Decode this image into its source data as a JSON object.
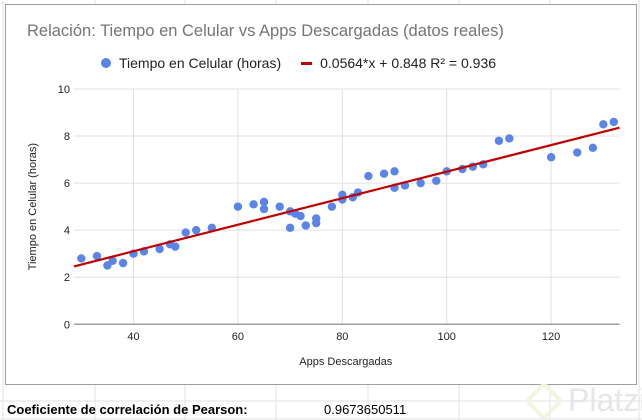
{
  "chart_data": {
    "type": "scatter",
    "title": "Relación: Tiempo en Celular vs Apps Descargadas (datos reales)",
    "xlabel": "Apps Descargadas",
    "ylabel": "Tiempo en Celular (horas)",
    "xlim": [
      28.6,
      133.1
    ],
    "ylim": [
      0,
      10
    ],
    "x_ticks": [
      40,
      60,
      80,
      100,
      120
    ],
    "y_ticks": [
      0,
      2,
      4,
      6,
      8,
      10
    ],
    "grid": true,
    "legend_position": "top",
    "series": [
      {
        "name": "Tiempo en Celular (horas)",
        "color": "#5b84e8",
        "points": [
          [
            30,
            2.8
          ],
          [
            33,
            2.9
          ],
          [
            35,
            2.5
          ],
          [
            36,
            2.7
          ],
          [
            38,
            2.6
          ],
          [
            40,
            3.0
          ],
          [
            42,
            3.1
          ],
          [
            45,
            3.2
          ],
          [
            47,
            3.4
          ],
          [
            48,
            3.3
          ],
          [
            50,
            3.9
          ],
          [
            52,
            4.0
          ],
          [
            55,
            4.1
          ],
          [
            60,
            5.0
          ],
          [
            63,
            5.1
          ],
          [
            65,
            5.2
          ],
          [
            65,
            4.9
          ],
          [
            68,
            5.0
          ],
          [
            70,
            4.8
          ],
          [
            70,
            4.1
          ],
          [
            71,
            4.7
          ],
          [
            72,
            4.6
          ],
          [
            73,
            4.2
          ],
          [
            75,
            4.5
          ],
          [
            75,
            4.3
          ],
          [
            78,
            5.0
          ],
          [
            80,
            5.5
          ],
          [
            80,
            5.3
          ],
          [
            82,
            5.4
          ],
          [
            83,
            5.6
          ],
          [
            85,
            6.3
          ],
          [
            88,
            6.4
          ],
          [
            90,
            6.5
          ],
          [
            90,
            5.8
          ],
          [
            92,
            5.9
          ],
          [
            95,
            6.0
          ],
          [
            98,
            6.1
          ],
          [
            100,
            6.5
          ],
          [
            103,
            6.6
          ],
          [
            105,
            6.7
          ],
          [
            107,
            6.8
          ],
          [
            110,
            7.8
          ],
          [
            112,
            7.9
          ],
          [
            120,
            7.1
          ],
          [
            125,
            7.3
          ],
          [
            128,
            7.5
          ],
          [
            130,
            8.5
          ],
          [
            132,
            8.6
          ]
        ]
      }
    ],
    "trendline": {
      "label": "0.0564*x + 0.848 R² = 0.936",
      "slope": 0.0564,
      "intercept": 0.848,
      "r2": 0.936,
      "color": "#c00000"
    }
  },
  "chart": {
    "title": "Relación: Tiempo en Celular vs Apps Descargadas (datos reales)",
    "legend_series": "Tiempo en Celular (horas)",
    "legend_trend": "0.0564*x + 0.848 R² = 0.936",
    "xlabel": "Apps Descargadas",
    "ylabel": "Tiempo en Celular (horas)"
  },
  "sheet": {
    "pearson_label": "Coeficiente de correlación de Pearson:",
    "pearson_value": "0.9673650511"
  },
  "watermark": "Platzi"
}
